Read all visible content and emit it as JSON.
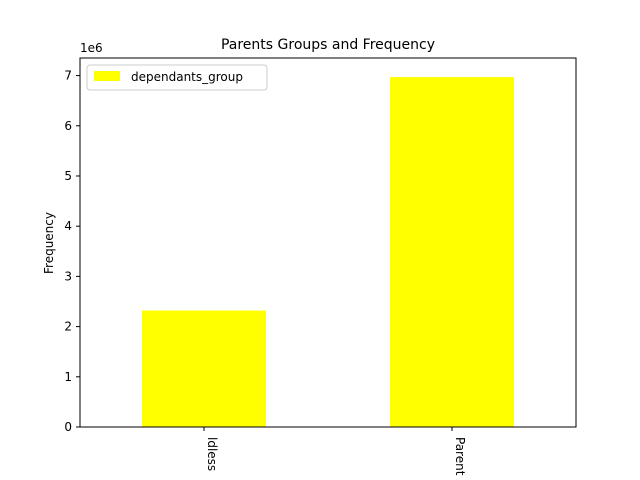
{
  "chart_data": {
    "type": "bar",
    "title": "Parents Groups and Frequency",
    "xlabel": "",
    "ylabel": "Frequency",
    "ylim": [
      0,
      7350000
    ],
    "y_ticks": [
      0,
      1,
      2,
      3,
      4,
      5,
      6,
      7
    ],
    "y_ticks_scale_label": "1e6",
    "categories": [
      "Childless",
      "Parent"
    ],
    "category_labels_visible": [
      "ldless",
      "Parent"
    ],
    "series": [
      {
        "name": "dependants_group",
        "values": [
          2320000,
          6970000
        ]
      }
    ],
    "colors": {
      "bar": "#ffff00"
    },
    "grid": false,
    "legend": {
      "position": "top-left"
    }
  }
}
